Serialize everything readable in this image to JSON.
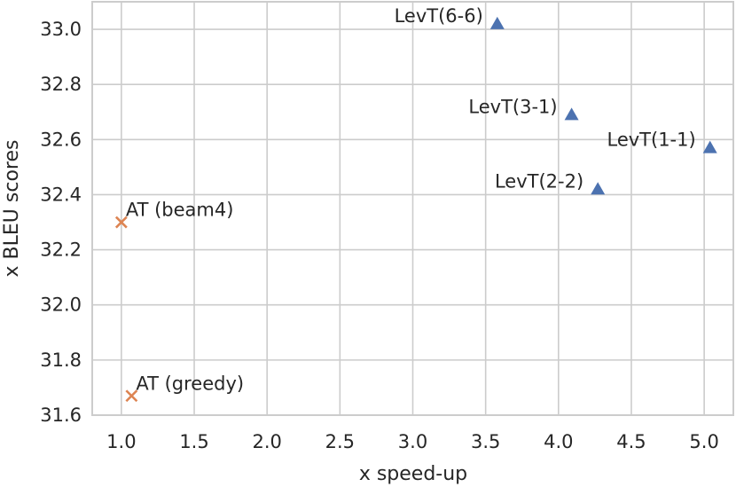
{
  "chart_data": {
    "type": "scatter",
    "title": "",
    "xlabel": "x speed-up",
    "ylabel": "x BLEU scores",
    "xlim": [
      0.8,
      5.2
    ],
    "ylim": [
      31.6,
      33.1
    ],
    "xticks": [
      1.0,
      1.5,
      2.0,
      2.5,
      3.0,
      3.5,
      4.0,
      4.5,
      5.0
    ],
    "xtick_labels": [
      "1.0",
      "1.5",
      "2.0",
      "2.5",
      "3.0",
      "3.5",
      "4.0",
      "4.5",
      "5.0"
    ],
    "yticks": [
      31.6,
      31.8,
      32.0,
      32.2,
      32.4,
      32.6,
      32.8,
      33.0
    ],
    "ytick_labels": [
      "31.6",
      "31.8",
      "32.0",
      "32.2",
      "32.4",
      "32.6",
      "32.8",
      "33.0"
    ],
    "grid": true,
    "series": [
      {
        "name": "LevT",
        "marker": "triangle",
        "color": "#4c72b0",
        "points": [
          {
            "label": "LevT(6-6)",
            "x": 3.58,
            "y": 33.02,
            "label_side": "left"
          },
          {
            "label": "LevT(3-1)",
            "x": 4.09,
            "y": 32.69,
            "label_side": "left"
          },
          {
            "label": "LevT(1-1)",
            "x": 5.04,
            "y": 32.57,
            "label_side": "left"
          },
          {
            "label": "LevT(2-2)",
            "x": 4.27,
            "y": 32.42,
            "label_side": "left"
          }
        ]
      },
      {
        "name": "AT",
        "marker": "x",
        "color": "#dd8452",
        "points": [
          {
            "label": "AT (beam4)",
            "x": 1.0,
            "y": 32.3,
            "label_side": "right"
          },
          {
            "label": "AT (greedy)",
            "x": 1.07,
            "y": 31.67,
            "label_side": "right"
          }
        ]
      }
    ]
  }
}
